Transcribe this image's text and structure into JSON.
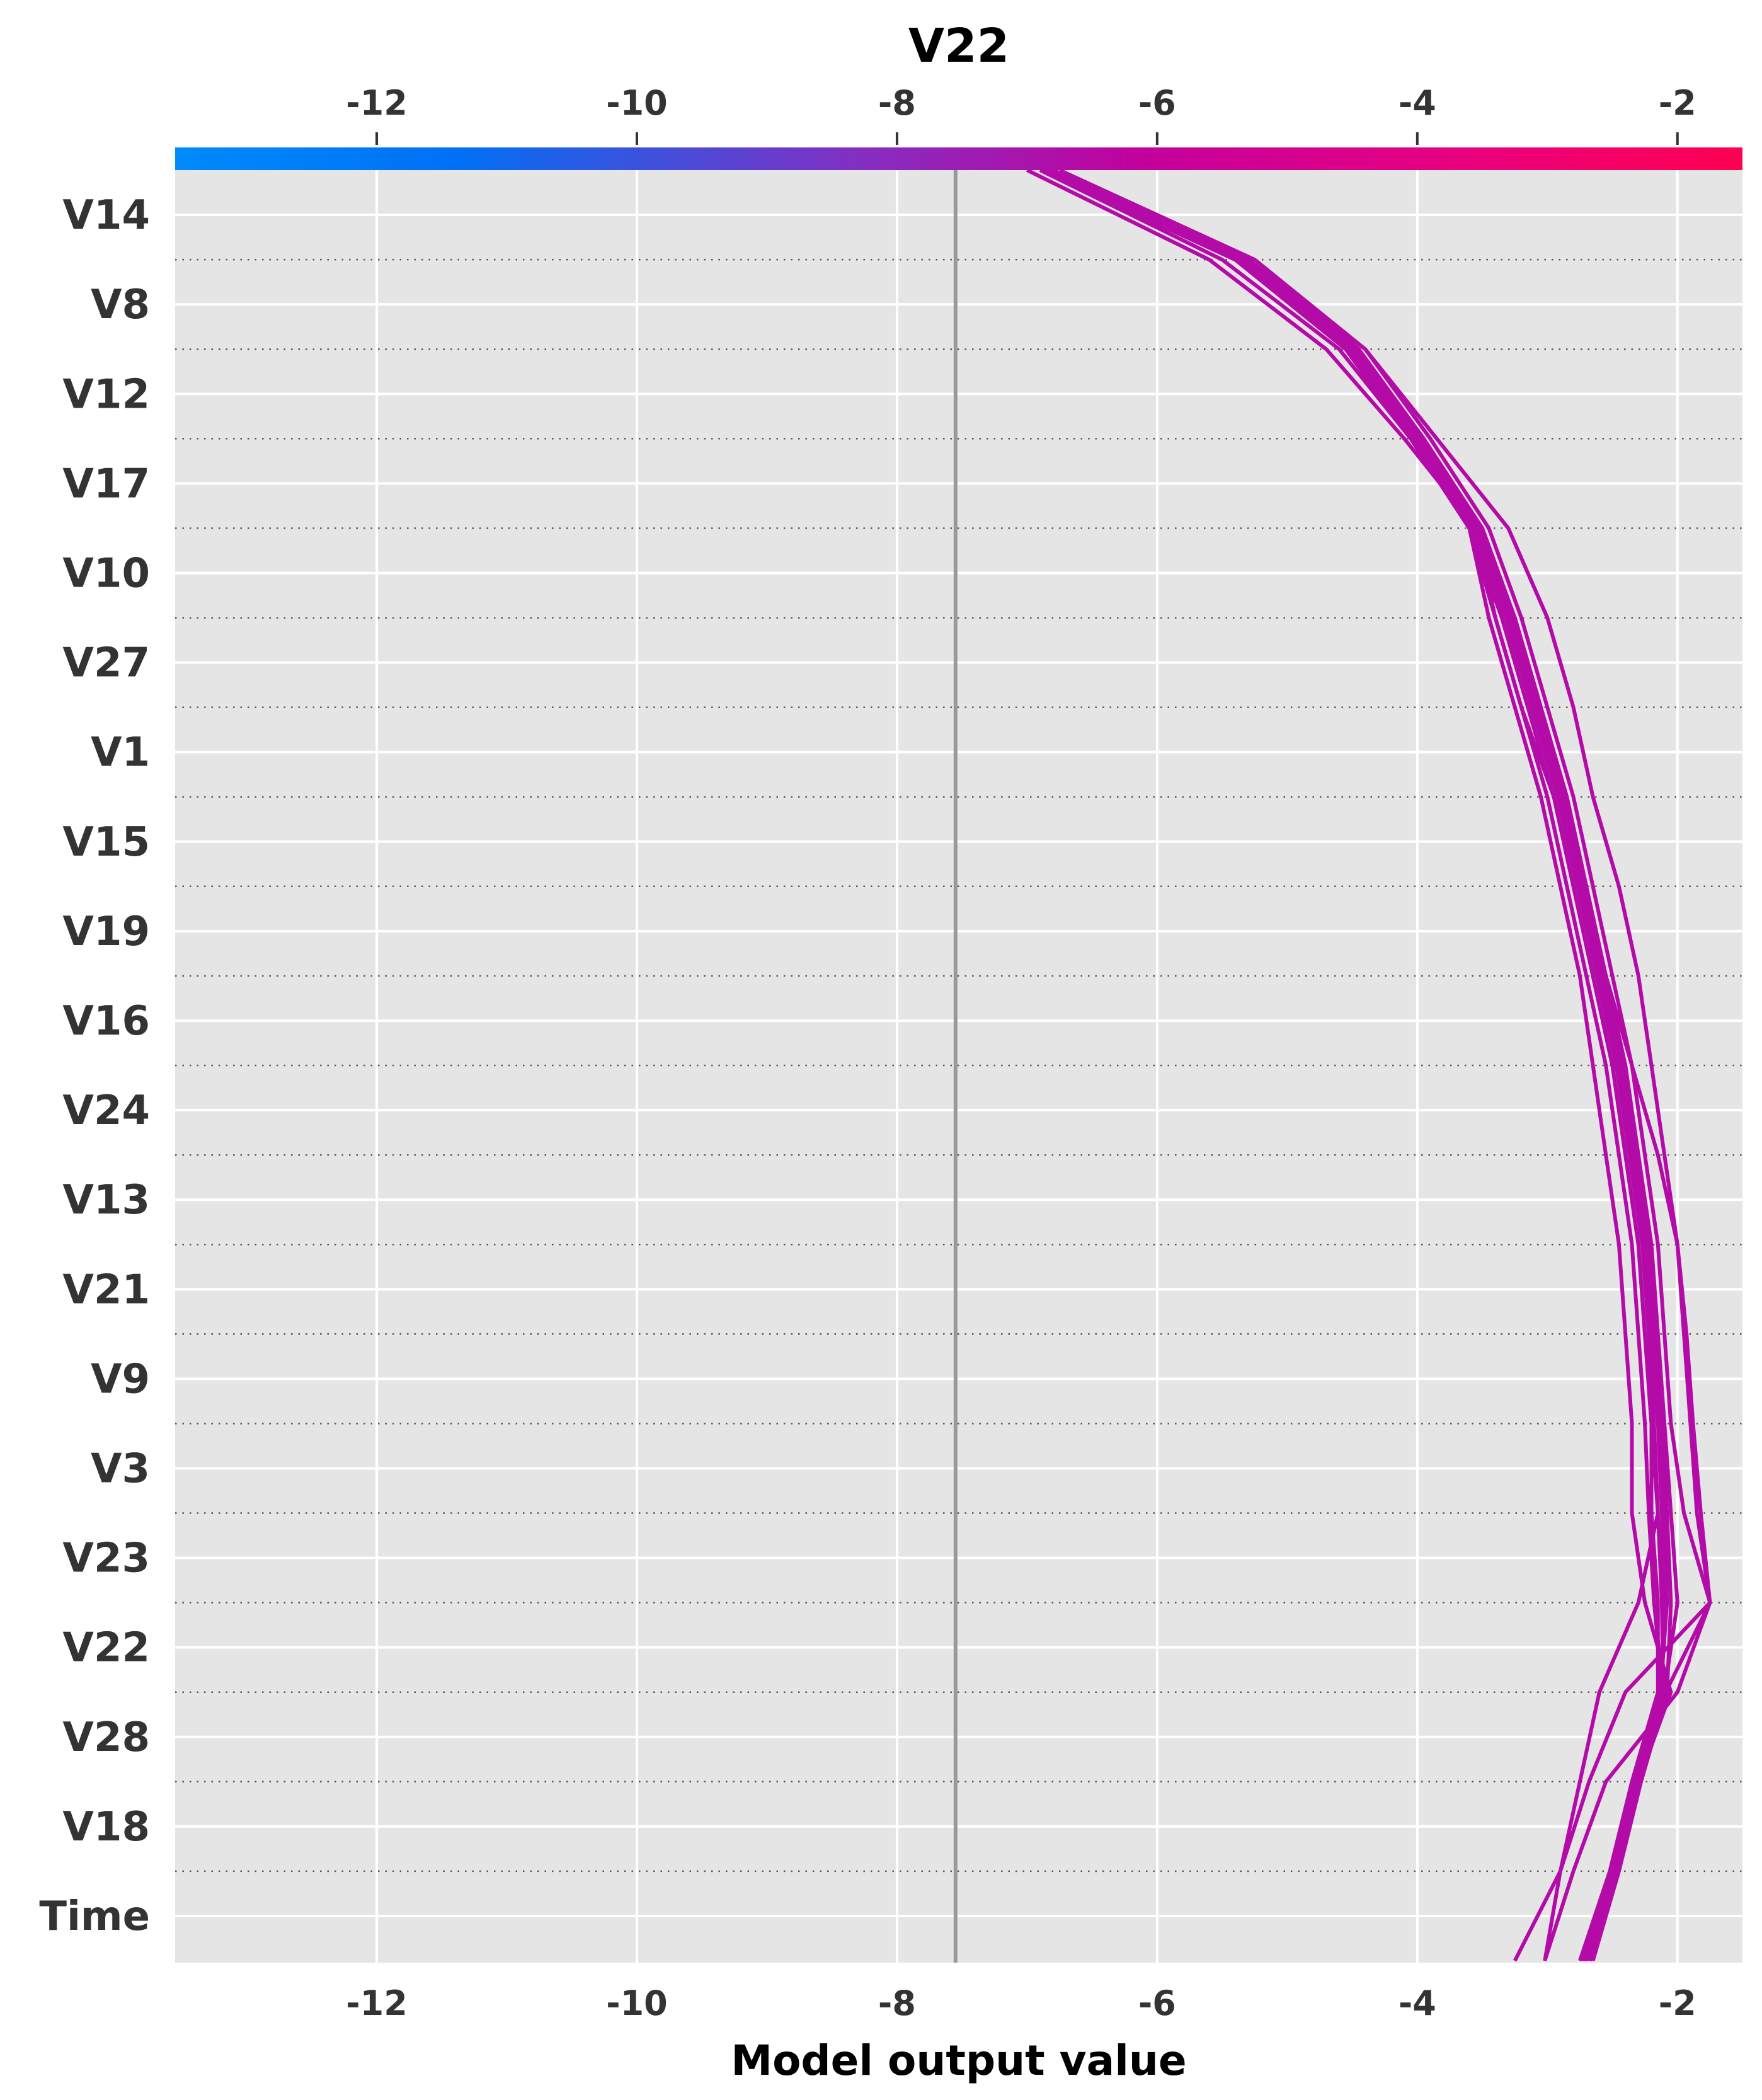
{
  "chart_data": {
    "type": "line",
    "chart_kind": "decision-plot",
    "title": "V22",
    "xlabel": "Model output value",
    "xlim": [
      -13.55,
      -1.5
    ],
    "xticks": [
      -12,
      -10,
      -8,
      -6,
      -4,
      -2
    ],
    "base_value": -7.55,
    "colorbar": {
      "low_color": "#008bfb",
      "high_color": "#ff0052",
      "position": "top"
    },
    "features": [
      "V14",
      "V8",
      "V12",
      "V17",
      "V10",
      "V27",
      "V1",
      "V15",
      "V19",
      "V16",
      "V24",
      "V13",
      "V21",
      "V9",
      "V3",
      "V23",
      "V22",
      "V28",
      "V18",
      "Time"
    ],
    "grid": true,
    "line_color": "#b30aa8",
    "series": [
      {
        "values": [
          -3.25,
          -2.9,
          -2.75,
          -2.6,
          -2.3,
          -2.15,
          -2.2,
          -2.25,
          -2.3,
          -2.4,
          -2.5,
          -2.65,
          -2.8,
          -2.95,
          -3.2,
          -3.4,
          -3.55,
          -4.1,
          -4.7,
          -5.6,
          -7.0
        ]
      },
      {
        "values": [
          -3.02,
          -2.8,
          -2.55,
          -2.0,
          -1.75,
          -1.85,
          -1.9,
          -1.95,
          -2.0,
          -2.1,
          -2.2,
          -2.3,
          -2.45,
          -2.65,
          -2.8,
          -3.0,
          -3.3,
          -3.85,
          -4.4,
          -5.3,
          -6.8
        ]
      },
      {
        "values": [
          -2.7,
          -2.48,
          -2.3,
          -2.05,
          -2.25,
          -2.35,
          -2.35,
          -2.4,
          -2.45,
          -2.55,
          -2.65,
          -2.75,
          -2.9,
          -3.05,
          -3.25,
          -3.45,
          -3.6,
          -4.05,
          -4.6,
          -5.5,
          -6.9
        ]
      },
      {
        "values": [
          -2.72,
          -2.5,
          -2.32,
          -2.12,
          -2.1,
          -2.12,
          -2.15,
          -2.2,
          -2.25,
          -2.35,
          -2.45,
          -2.6,
          -2.75,
          -2.9,
          -3.1,
          -3.3,
          -3.55,
          -4.0,
          -4.5,
          -5.35,
          -6.85
        ]
      },
      {
        "values": [
          -2.68,
          -2.47,
          -2.3,
          -2.1,
          -2.0,
          -2.05,
          -2.1,
          -2.15,
          -2.2,
          -2.3,
          -2.4,
          -2.55,
          -2.7,
          -2.85,
          -3.05,
          -3.25,
          -3.5,
          -3.95,
          -4.45,
          -5.3,
          -6.8
        ]
      },
      {
        "values": [
          -2.75,
          -2.52,
          -2.35,
          -2.15,
          -2.15,
          -2.2,
          -2.2,
          -2.25,
          -2.3,
          -2.4,
          -2.5,
          -2.65,
          -2.8,
          -2.95,
          -3.15,
          -3.35,
          -3.6,
          -4.05,
          -4.55,
          -5.4,
          -6.9
        ]
      },
      {
        "values": [
          -2.65,
          -2.45,
          -2.28,
          -2.08,
          -2.05,
          -2.08,
          -2.12,
          -2.17,
          -2.22,
          -2.32,
          -2.42,
          -2.57,
          -2.72,
          -2.87,
          -3.07,
          -3.27,
          -3.52,
          -3.98,
          -4.48,
          -5.32,
          -6.83
        ]
      },
      {
        "values": [
          -2.7,
          -2.48,
          -2.31,
          -2.11,
          -2.12,
          -2.15,
          -2.18,
          -2.22,
          -2.27,
          -2.37,
          -2.47,
          -2.62,
          -2.77,
          -2.92,
          -3.12,
          -3.32,
          -3.57,
          -4.02,
          -4.52,
          -5.37,
          -6.87
        ]
      },
      {
        "values": [
          -2.73,
          -2.51,
          -2.33,
          -2.13,
          -2.08,
          -2.1,
          -2.14,
          -2.19,
          -2.24,
          -2.34,
          -2.44,
          -2.59,
          -2.74,
          -2.89,
          -3.09,
          -3.29,
          -3.54,
          -3.99,
          -4.49,
          -5.34,
          -6.84
        ]
      },
      {
        "values": [
          -2.67,
          -2.46,
          -2.29,
          -2.09,
          -1.75,
          -1.95,
          -2.05,
          -2.1,
          -2.15,
          -2.25,
          -2.35,
          -2.5,
          -2.65,
          -2.8,
          -3.0,
          -3.2,
          -3.45,
          -3.9,
          -4.4,
          -5.25,
          -6.75
        ]
      },
      {
        "values": [
          -2.71,
          -2.49,
          -2.31,
          -2.11,
          -2.18,
          -2.22,
          -2.25,
          -2.3,
          -2.35,
          -2.45,
          -2.55,
          -2.7,
          -2.85,
          -3.0,
          -3.2,
          -3.4,
          -3.6,
          -4.05,
          -4.55,
          -5.4,
          -6.9
        ]
      },
      {
        "values": [
          -3.02,
          -2.9,
          -2.68,
          -2.4,
          -1.75,
          -1.82,
          -1.88,
          -1.93,
          -2.0,
          -2.15,
          -2.35,
          -2.55,
          -2.75,
          -2.9,
          -3.05,
          -3.25,
          -3.55,
          -4.05,
          -4.5,
          -5.3,
          -6.8
        ]
      }
    ]
  }
}
